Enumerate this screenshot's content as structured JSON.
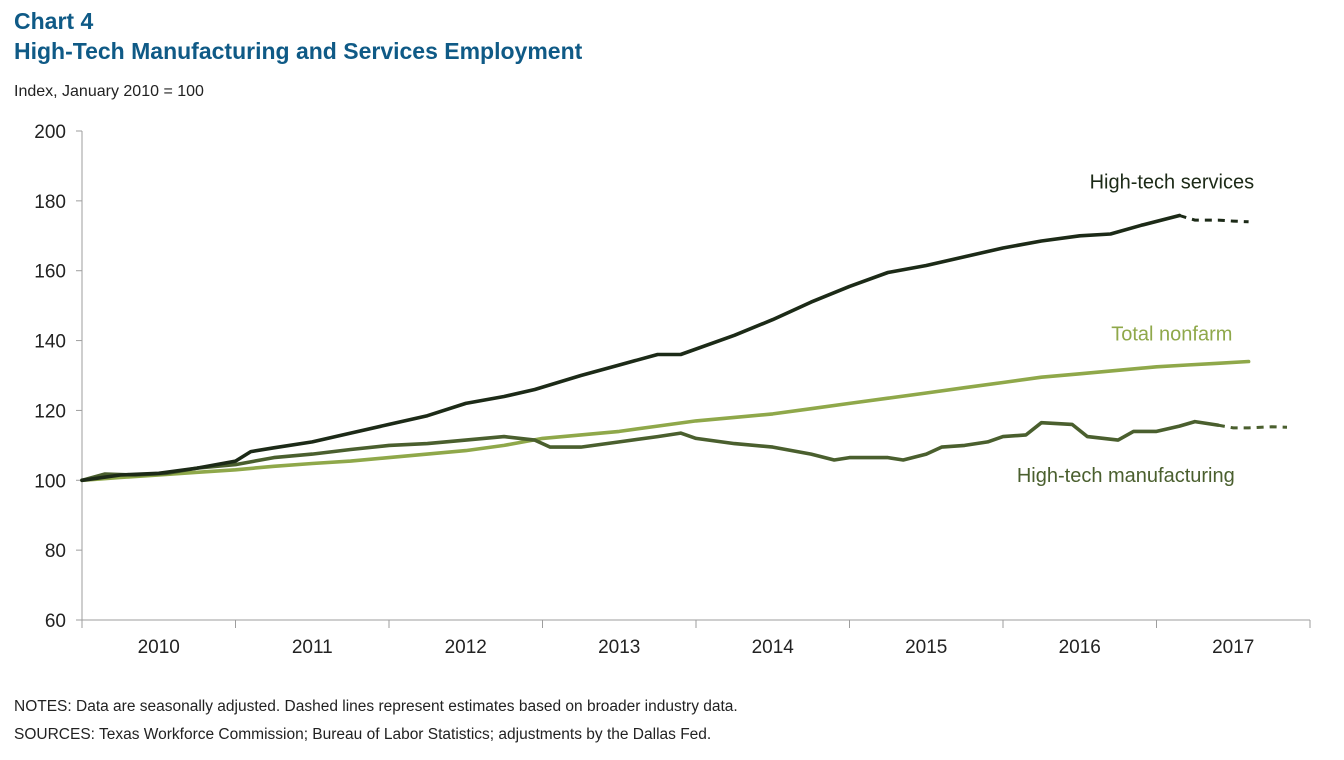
{
  "header": {
    "chart_number": "Chart 4",
    "title": "High-Tech Manufacturing and Services Employment",
    "subtitle": "Index, January 2010 = 100"
  },
  "footer": {
    "notes": "NOTES: Data are seasonally adjusted. Dashed lines represent estimates based on broader industry data.",
    "sources": "SOURCES: Texas Workforce Commission; Bureau of Labor Statistics; adjustments by the Dallas Fed."
  },
  "colors": {
    "title": "#0f5a86",
    "services": "#1c2a17",
    "manufacturing": "#4a5f2e",
    "nonfarm": "#8fa84a",
    "axis": "#9e9e9e"
  },
  "chart_data": {
    "type": "line",
    "title": "High-Tech Manufacturing and Services Employment",
    "ylabel": "Index, January 2010 = 100",
    "xlabel": "",
    "ylim": [
      60,
      200
    ],
    "yticks": [
      60,
      80,
      100,
      120,
      140,
      160,
      180,
      200
    ],
    "xlim": [
      2010,
      2018
    ],
    "x_tick_labels": [
      "2010",
      "2011",
      "2012",
      "2013",
      "2014",
      "2015",
      "2016",
      "2017"
    ],
    "grid": false,
    "legend": "inline labels",
    "series": [
      {
        "name": "High-tech services",
        "color_key": "services",
        "points": [
          [
            2010.0,
            100.0
          ],
          [
            2010.25,
            101.5
          ],
          [
            2010.5,
            102.0
          ],
          [
            2010.75,
            103.5
          ],
          [
            2011.0,
            105.5
          ],
          [
            2011.1,
            108.2
          ],
          [
            2011.25,
            109.3
          ],
          [
            2011.5,
            111.0
          ],
          [
            2011.75,
            113.5
          ],
          [
            2012.0,
            116.0
          ],
          [
            2012.25,
            118.5
          ],
          [
            2012.5,
            122.0
          ],
          [
            2012.75,
            124.0
          ],
          [
            2012.95,
            126.0
          ],
          [
            2013.25,
            130.0
          ],
          [
            2013.5,
            133.0
          ],
          [
            2013.75,
            136.0
          ],
          [
            2013.9,
            136.0
          ],
          [
            2014.25,
            141.5
          ],
          [
            2014.5,
            146.0
          ],
          [
            2014.75,
            151.0
          ],
          [
            2015.0,
            155.5
          ],
          [
            2015.25,
            159.5
          ],
          [
            2015.5,
            161.5
          ],
          [
            2015.75,
            164.0
          ],
          [
            2016.0,
            166.5
          ],
          [
            2016.25,
            168.5
          ],
          [
            2016.5,
            170.0
          ],
          [
            2016.7,
            170.5
          ],
          [
            2016.9,
            173.0
          ],
          [
            2017.15,
            175.8
          ]
        ],
        "estimate_points": [
          [
            2017.15,
            175.8
          ],
          [
            2017.25,
            174.5
          ],
          [
            2017.4,
            174.5
          ],
          [
            2017.5,
            174.2
          ],
          [
            2017.6,
            174.0
          ]
        ]
      },
      {
        "name": "Total nonfarm",
        "color_key": "nonfarm",
        "points": [
          [
            2010.0,
            100.0
          ],
          [
            2010.25,
            100.8
          ],
          [
            2010.5,
            101.5
          ],
          [
            2010.75,
            102.3
          ],
          [
            2011.0,
            103.0
          ],
          [
            2011.25,
            104.0
          ],
          [
            2011.5,
            104.8
          ],
          [
            2011.75,
            105.5
          ],
          [
            2012.0,
            106.5
          ],
          [
            2012.25,
            107.5
          ],
          [
            2012.5,
            108.5
          ],
          [
            2012.75,
            110.0
          ],
          [
            2013.0,
            112.0
          ],
          [
            2013.25,
            113.0
          ],
          [
            2013.5,
            114.0
          ],
          [
            2013.75,
            115.5
          ],
          [
            2014.0,
            117.0
          ],
          [
            2014.25,
            118.0
          ],
          [
            2014.5,
            119.0
          ],
          [
            2014.75,
            120.5
          ],
          [
            2015.0,
            122.0
          ],
          [
            2015.25,
            123.5
          ],
          [
            2015.5,
            125.0
          ],
          [
            2015.75,
            126.5
          ],
          [
            2016.0,
            128.0
          ],
          [
            2016.25,
            129.5
          ],
          [
            2016.5,
            130.5
          ],
          [
            2016.75,
            131.5
          ],
          [
            2017.0,
            132.5
          ],
          [
            2017.2,
            133.0
          ],
          [
            2017.4,
            133.5
          ],
          [
            2017.6,
            134.0
          ]
        ]
      },
      {
        "name": "High-tech manufacturing",
        "color_key": "manufacturing",
        "points": [
          [
            2010.0,
            100.0
          ],
          [
            2010.15,
            101.8
          ],
          [
            2010.35,
            101.5
          ],
          [
            2010.55,
            102.0
          ],
          [
            2010.75,
            103.5
          ],
          [
            2011.0,
            104.5
          ],
          [
            2011.25,
            106.5
          ],
          [
            2011.5,
            107.5
          ],
          [
            2011.75,
            108.8
          ],
          [
            2012.0,
            110.0
          ],
          [
            2012.25,
            110.5
          ],
          [
            2012.5,
            111.5
          ],
          [
            2012.75,
            112.5
          ],
          [
            2012.95,
            111.5
          ],
          [
            2013.05,
            109.5
          ],
          [
            2013.25,
            109.5
          ],
          [
            2013.5,
            111.0
          ],
          [
            2013.75,
            112.5
          ],
          [
            2013.9,
            113.5
          ],
          [
            2014.0,
            112.0
          ],
          [
            2014.25,
            110.5
          ],
          [
            2014.5,
            109.5
          ],
          [
            2014.75,
            107.5
          ],
          [
            2014.9,
            105.8
          ],
          [
            2015.0,
            106.5
          ],
          [
            2015.25,
            106.5
          ],
          [
            2015.35,
            105.8
          ],
          [
            2015.5,
            107.5
          ],
          [
            2015.6,
            109.5
          ],
          [
            2015.75,
            110.0
          ],
          [
            2015.9,
            111.0
          ],
          [
            2016.0,
            112.5
          ],
          [
            2016.15,
            113.0
          ],
          [
            2016.25,
            116.5
          ],
          [
            2016.45,
            116.0
          ],
          [
            2016.55,
            112.5
          ],
          [
            2016.75,
            111.5
          ],
          [
            2016.85,
            114.0
          ],
          [
            2017.0,
            114.0
          ],
          [
            2017.15,
            115.5
          ],
          [
            2017.25,
            116.8
          ],
          [
            2017.4,
            115.8
          ]
        ],
        "estimate_points": [
          [
            2017.4,
            115.8
          ],
          [
            2017.5,
            115.0
          ],
          [
            2017.6,
            115.0
          ],
          [
            2017.75,
            115.3
          ],
          [
            2017.85,
            115.2
          ]
        ]
      }
    ],
    "annotations": [
      {
        "text": "High-tech services",
        "color_key": "services",
        "x": 2017.1,
        "y": 183.5
      },
      {
        "text": "Total nonfarm",
        "color_key": "nonfarm",
        "x": 2017.1,
        "y": 140
      },
      {
        "text": "High-tech manufacturing",
        "color_key": "manufacturing",
        "x": 2016.8,
        "y": 99.5
      }
    ]
  }
}
